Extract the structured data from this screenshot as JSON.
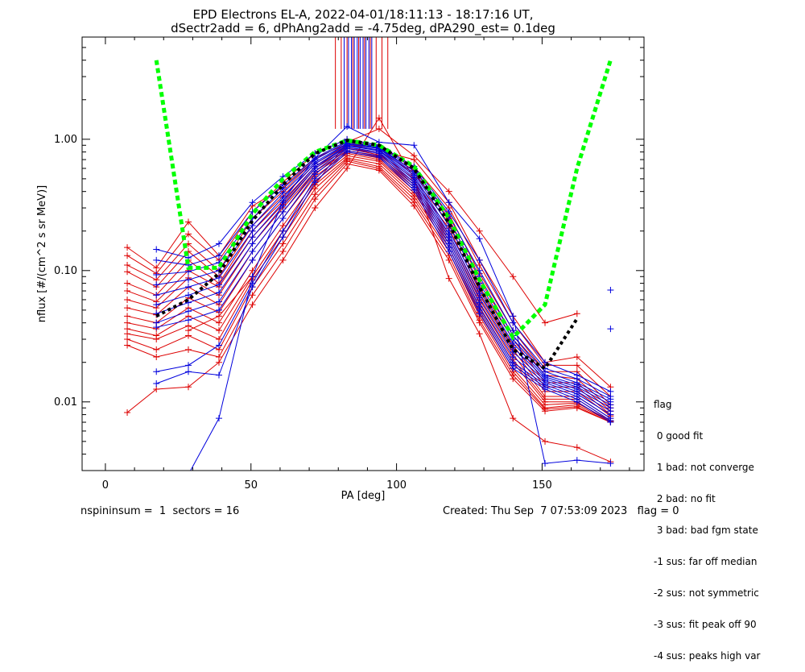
{
  "chart_data": {
    "type": "line",
    "title_line1": "EPD Electrons EL-A, 2022-04-01/18:11:13 - 18:17:16 UT,",
    "title_line2": "dSectr2add = 6, dPhAng2add = -4.75deg, dPA290_est=   0.1deg",
    "xlabel": "PA [deg]",
    "ylabel": "nflux [#/(cm^2 s sr MeV)]",
    "xlim": [
      -8,
      185
    ],
    "ylim": [
      0.003,
      6.0
    ],
    "y_scale": "log",
    "x_ticks": [
      0,
      50,
      100,
      150
    ],
    "x_tick_labels": [
      "0",
      "50",
      "100",
      "150"
    ],
    "y_ticks": [
      0.01,
      0.1,
      1.0
    ],
    "y_tick_labels": [
      "0.01",
      "0.10",
      "1.00"
    ],
    "colors": {
      "red": "#dd0000",
      "blue": "#0000dd",
      "green": "#00ff00",
      "black": "#000000"
    },
    "pa_bins": [
      7.5,
      17.5,
      28.5,
      39.0,
      50.5,
      61.0,
      72.0,
      83.0,
      94.0,
      106.0,
      118.0,
      128.5,
      140.0,
      151.0,
      162.0,
      173.5
    ],
    "series": [
      {
        "color": "red",
        "values": [
          0.15,
          0.105,
          0.235,
          0.13,
          0.31,
          0.43,
          0.72,
          0.92,
          0.82,
          0.7,
          0.33,
          0.12,
          0.045,
          0.02,
          0.022,
          0.013
        ]
      },
      {
        "color": "red",
        "values": [
          0.13,
          0.095,
          0.19,
          0.12,
          0.28,
          0.47,
          0.78,
          1.0,
          0.9,
          0.62,
          0.3,
          0.11,
          0.04,
          0.019,
          0.019,
          0.011
        ]
      },
      {
        "color": "red",
        "values": [
          0.11,
          0.085,
          0.16,
          0.1,
          0.25,
          0.4,
          0.7,
          0.95,
          0.85,
          0.58,
          0.27,
          0.095,
          0.035,
          0.017,
          0.017,
          0.0095
        ]
      },
      {
        "color": "red",
        "values": [
          0.098,
          0.075,
          0.14,
          0.09,
          0.22,
          0.37,
          0.65,
          0.9,
          0.82,
          0.55,
          0.25,
          0.085,
          0.032,
          0.016,
          0.015,
          0.009
        ]
      },
      {
        "color": "red",
        "values": [
          0.08,
          0.065,
          0.12,
          0.08,
          0.2,
          0.34,
          0.62,
          0.87,
          0.78,
          0.5,
          0.23,
          0.075,
          0.03,
          0.014,
          0.014,
          0.0085
        ]
      },
      {
        "color": "red",
        "values": [
          0.07,
          0.058,
          0.1,
          0.075,
          0.18,
          0.32,
          0.6,
          0.85,
          0.76,
          0.47,
          0.21,
          0.07,
          0.027,
          0.013,
          0.013,
          0.008
        ]
      },
      {
        "color": "red",
        "values": [
          0.06,
          0.052,
          0.088,
          0.065,
          0.16,
          0.3,
          0.57,
          0.82,
          0.74,
          0.45,
          0.19,
          0.065,
          0.025,
          0.012,
          0.012,
          0.0078
        ]
      },
      {
        "color": "red",
        "values": [
          0.052,
          0.046,
          0.075,
          0.055,
          0.14,
          0.28,
          0.55,
          0.8,
          0.72,
          0.43,
          0.18,
          0.06,
          0.023,
          0.011,
          0.011,
          0.0075
        ]
      },
      {
        "color": "red",
        "values": [
          0.045,
          0.04,
          0.062,
          0.048,
          0.12,
          0.25,
          0.52,
          0.78,
          0.7,
          0.41,
          0.17,
          0.056,
          0.021,
          0.0105,
          0.0105,
          0.0072
        ]
      },
      {
        "color": "red",
        "values": [
          0.04,
          0.036,
          0.052,
          0.04,
          0.1,
          0.22,
          0.48,
          0.75,
          0.68,
          0.39,
          0.16,
          0.052,
          0.02,
          0.01,
          0.01,
          0.007
        ]
      },
      {
        "color": "red",
        "values": [
          0.036,
          0.032,
          0.045,
          0.035,
          0.09,
          0.2,
          0.45,
          0.72,
          0.65,
          0.37,
          0.15,
          0.048,
          0.018,
          0.0095,
          0.0098,
          0.0072
        ]
      },
      {
        "color": "red",
        "values": [
          0.033,
          0.03,
          0.038,
          0.03,
          0.085,
          0.18,
          0.42,
          0.7,
          0.62,
          0.35,
          0.14,
          0.045,
          0.017,
          0.009,
          0.0095,
          0.0071
        ]
      },
      {
        "color": "red",
        "values": [
          0.03,
          0.025,
          0.032,
          0.025,
          0.075,
          0.16,
          0.38,
          0.68,
          0.6,
          0.33,
          0.13,
          0.042,
          0.016,
          0.0088,
          0.0092,
          0.007
        ]
      },
      {
        "color": "red",
        "values": [
          0.027,
          0.022,
          0.025,
          0.022,
          0.065,
          0.14,
          0.35,
          0.65,
          0.58,
          0.31,
          0.12,
          0.04,
          0.015,
          0.0085,
          0.009,
          0.007
        ]
      },
      {
        "color": "red",
        "values": [
          0.0083,
          0.0125,
          0.013,
          0.02,
          0.055,
          0.12,
          0.3,
          0.6,
          1.45,
          0.5,
          0.087,
          0.033,
          0.0075,
          0.005,
          0.0045,
          0.0035
        ]
      },
      {
        "color": "red",
        "values": [
          null,
          null,
          0.035,
          0.045,
          0.09,
          0.2,
          0.45,
          0.95,
          1.2,
          0.75,
          0.4,
          0.2,
          0.09,
          0.04,
          0.047,
          null
        ]
      },
      {
        "color": "blue",
        "values": [
          null,
          0.145,
          0.125,
          0.16,
          0.33,
          0.52,
          0.78,
          1.0,
          0.9,
          0.62,
          0.28,
          0.12,
          0.04,
          0.02,
          0.016,
          0.012
        ]
      },
      {
        "color": "blue",
        "values": [
          null,
          0.12,
          0.11,
          0.13,
          0.28,
          0.45,
          0.72,
          0.97,
          0.88,
          0.6,
          0.26,
          0.1,
          0.035,
          0.018,
          0.015,
          0.011
        ]
      },
      {
        "color": "blue",
        "values": [
          null,
          0.093,
          0.098,
          0.115,
          0.25,
          0.42,
          0.7,
          0.95,
          0.87,
          0.57,
          0.24,
          0.09,
          0.032,
          0.017,
          0.014,
          0.0105
        ]
      },
      {
        "color": "blue",
        "values": [
          null,
          0.078,
          0.085,
          0.1,
          0.22,
          0.39,
          0.67,
          0.93,
          0.86,
          0.55,
          0.22,
          0.08,
          0.03,
          0.016,
          0.0135,
          0.01
        ]
      },
      {
        "color": "blue",
        "values": [
          null,
          0.065,
          0.075,
          0.088,
          0.2,
          0.36,
          0.65,
          0.92,
          0.85,
          0.53,
          0.2,
          0.073,
          0.028,
          0.0155,
          0.013,
          0.0095
        ]
      },
      {
        "color": "blue",
        "values": [
          null,
          0.055,
          0.065,
          0.078,
          0.18,
          0.33,
          0.62,
          0.9,
          0.83,
          0.51,
          0.19,
          0.067,
          0.026,
          0.015,
          0.0125,
          0.009
        ]
      },
      {
        "color": "blue",
        "values": [
          null,
          0.047,
          0.057,
          0.068,
          0.16,
          0.31,
          0.6,
          0.89,
          0.82,
          0.49,
          0.18,
          0.062,
          0.024,
          0.0145,
          0.012,
          0.0085
        ]
      },
      {
        "color": "blue",
        "values": [
          null,
          0.04,
          0.049,
          0.058,
          0.14,
          0.28,
          0.57,
          0.87,
          0.8,
          0.47,
          0.17,
          0.057,
          0.022,
          0.014,
          0.0115,
          0.008
        ]
      },
      {
        "color": "blue",
        "values": [
          null,
          0.037,
          0.042,
          0.05,
          0.12,
          0.25,
          0.54,
          0.85,
          0.78,
          0.45,
          0.16,
          0.053,
          0.02,
          0.0135,
          0.011,
          0.0075
        ]
      },
      {
        "color": "blue",
        "values": [
          null,
          0.017,
          0.019,
          0.027,
          0.08,
          0.2,
          0.5,
          0.82,
          0.75,
          0.43,
          0.15,
          0.05,
          0.019,
          0.013,
          0.0105,
          0.0072
        ]
      },
      {
        "color": "blue",
        "values": [
          null,
          0.0138,
          0.017,
          0.016,
          0.075,
          0.18,
          0.47,
          0.8,
          0.73,
          0.41,
          0.14,
          0.047,
          0.018,
          0.0125,
          0.01,
          0.007
        ]
      },
      {
        "color": "blue",
        "values": [
          null,
          null,
          0.0028,
          0.0075,
          0.09,
          0.34,
          0.72,
          1.25,
          0.95,
          0.9,
          0.33,
          0.175,
          0.045,
          0.0034,
          0.0036,
          0.0034
        ]
      },
      {
        "color": "blue",
        "values": [
          null,
          null,
          null,
          null,
          null,
          null,
          null,
          null,
          null,
          null,
          null,
          null,
          null,
          null,
          null,
          0.071
        ]
      },
      {
        "color": "blue",
        "values": [
          null,
          null,
          null,
          null,
          null,
          null,
          null,
          null,
          null,
          null,
          null,
          null,
          null,
          null,
          null,
          0.036
        ]
      },
      {
        "color": "green",
        "values": [
          null,
          4.0,
          0.105,
          0.105,
          0.27,
          0.5,
          0.8,
          0.98,
          0.9,
          0.62,
          0.25,
          0.085,
          0.031,
          0.055,
          0.6,
          4.0
        ]
      },
      {
        "color": "black",
        "values": [
          null,
          0.045,
          0.06,
          0.095,
          0.24,
          0.45,
          0.78,
          0.98,
          0.9,
          0.6,
          0.23,
          0.075,
          0.025,
          0.018,
          0.043,
          null
        ]
      }
    ]
  },
  "legend": {
    "title": "flag",
    "items": [
      " 0 good fit",
      " 1 bad: not converge",
      " 2 bad: no fit",
      " 3 bad: bad fgm state",
      "-1 sus: far off median",
      "-2 sus: not symmetric",
      "-3 sus: fit peak off 90",
      "-4 sus: peaks high var"
    ]
  },
  "footer": {
    "left": "nspininsum =  1  sectors = 16",
    "right": "Created: Thu Sep  7 07:53:09 2023   flag = 0"
  }
}
